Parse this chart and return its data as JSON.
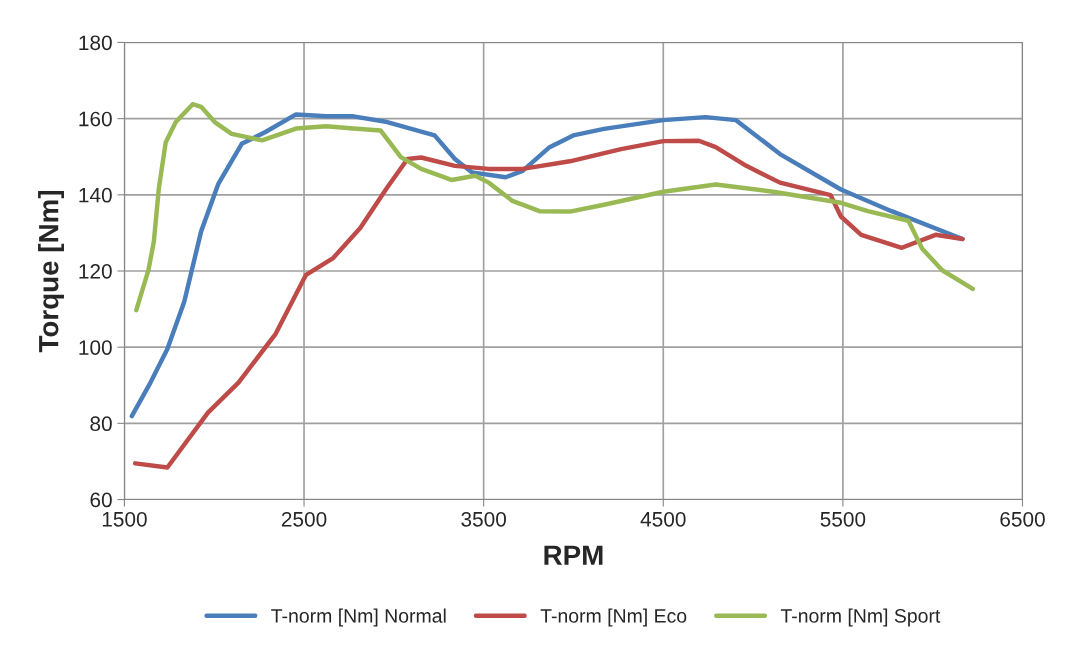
{
  "chart_data": {
    "type": "line",
    "xlabel": "RPM",
    "ylabel": "Torque [Nm]",
    "xlim": [
      1500,
      6500
    ],
    "xticks": [
      1500,
      2500,
      3500,
      4500,
      5500,
      6500
    ],
    "ylim": [
      60,
      180
    ],
    "yticks": [
      60,
      80,
      100,
      120,
      140,
      160,
      180
    ],
    "grid": true,
    "legend": "bottom",
    "marker": "none",
    "line_style": "solid",
    "series": [
      {
        "name": "T-norm [Nm] Normal",
        "color": "#4a7ebb",
        "x": [
          1541,
          1645,
          1739,
          1833,
          1927,
          2022,
          2153,
          2285,
          2455,
          2624,
          2775,
          2963,
          3227,
          3340,
          3434,
          3622,
          3717,
          3867,
          3999,
          4170,
          4500,
          4735,
          4905,
          5150,
          5489,
          5771,
          6166
        ],
        "values": [
          81.9,
          90.7,
          99.5,
          111.9,
          130.4,
          142.8,
          153.4,
          156.5,
          161.1,
          160.6,
          160.6,
          159.1,
          155.6,
          149.4,
          145.9,
          144.6,
          146.3,
          152.5,
          155.6,
          157.3,
          159.6,
          160.4,
          159.6,
          150.7,
          141.4,
          135.7,
          128.4
        ]
      },
      {
        "name": "T-norm [Nm] Eco",
        "color": "#be4b48",
        "x": [
          1560,
          1739,
          1965,
          2135,
          2342,
          2511,
          2662,
          2813,
          2963,
          3076,
          3152,
          3340,
          3528,
          3717,
          3980,
          4265,
          4500,
          4698,
          4792,
          4962,
          5150,
          5432,
          5489,
          5602,
          5828,
          6016,
          6166
        ],
        "values": [
          69.5,
          68.4,
          82.8,
          90.7,
          103.5,
          119.0,
          123.4,
          131.3,
          141.9,
          149.4,
          149.8,
          147.6,
          146.8,
          146.8,
          148.8,
          152.0,
          154.1,
          154.2,
          152.5,
          147.6,
          143.2,
          139.9,
          134.3,
          129.5,
          126.1,
          129.5,
          128.4
        ]
      },
      {
        "name": "T-norm [Nm] Sport",
        "color": "#98b954",
        "x": [
          1566,
          1634,
          1664,
          1692,
          1730,
          1786,
          1880,
          1927,
          2003,
          2097,
          2266,
          2455,
          2624,
          2775,
          2926,
          3039,
          3152,
          3321,
          3453,
          3528,
          3660,
          3811,
          3980,
          4170,
          4500,
          4792,
          5112,
          5489,
          5639,
          5865,
          5941,
          6053,
          6223
        ],
        "values": [
          109.7,
          120.3,
          127.8,
          141.9,
          153.8,
          159.1,
          163.8,
          163.1,
          159.1,
          156.0,
          154.3,
          157.4,
          158.0,
          157.4,
          156.9,
          149.9,
          146.8,
          143.9,
          145.0,
          143.2,
          138.4,
          135.7,
          135.6,
          137.4,
          140.8,
          142.7,
          140.8,
          137.9,
          135.7,
          133.2,
          125.9,
          120.2,
          115.3
        ]
      }
    ]
  }
}
